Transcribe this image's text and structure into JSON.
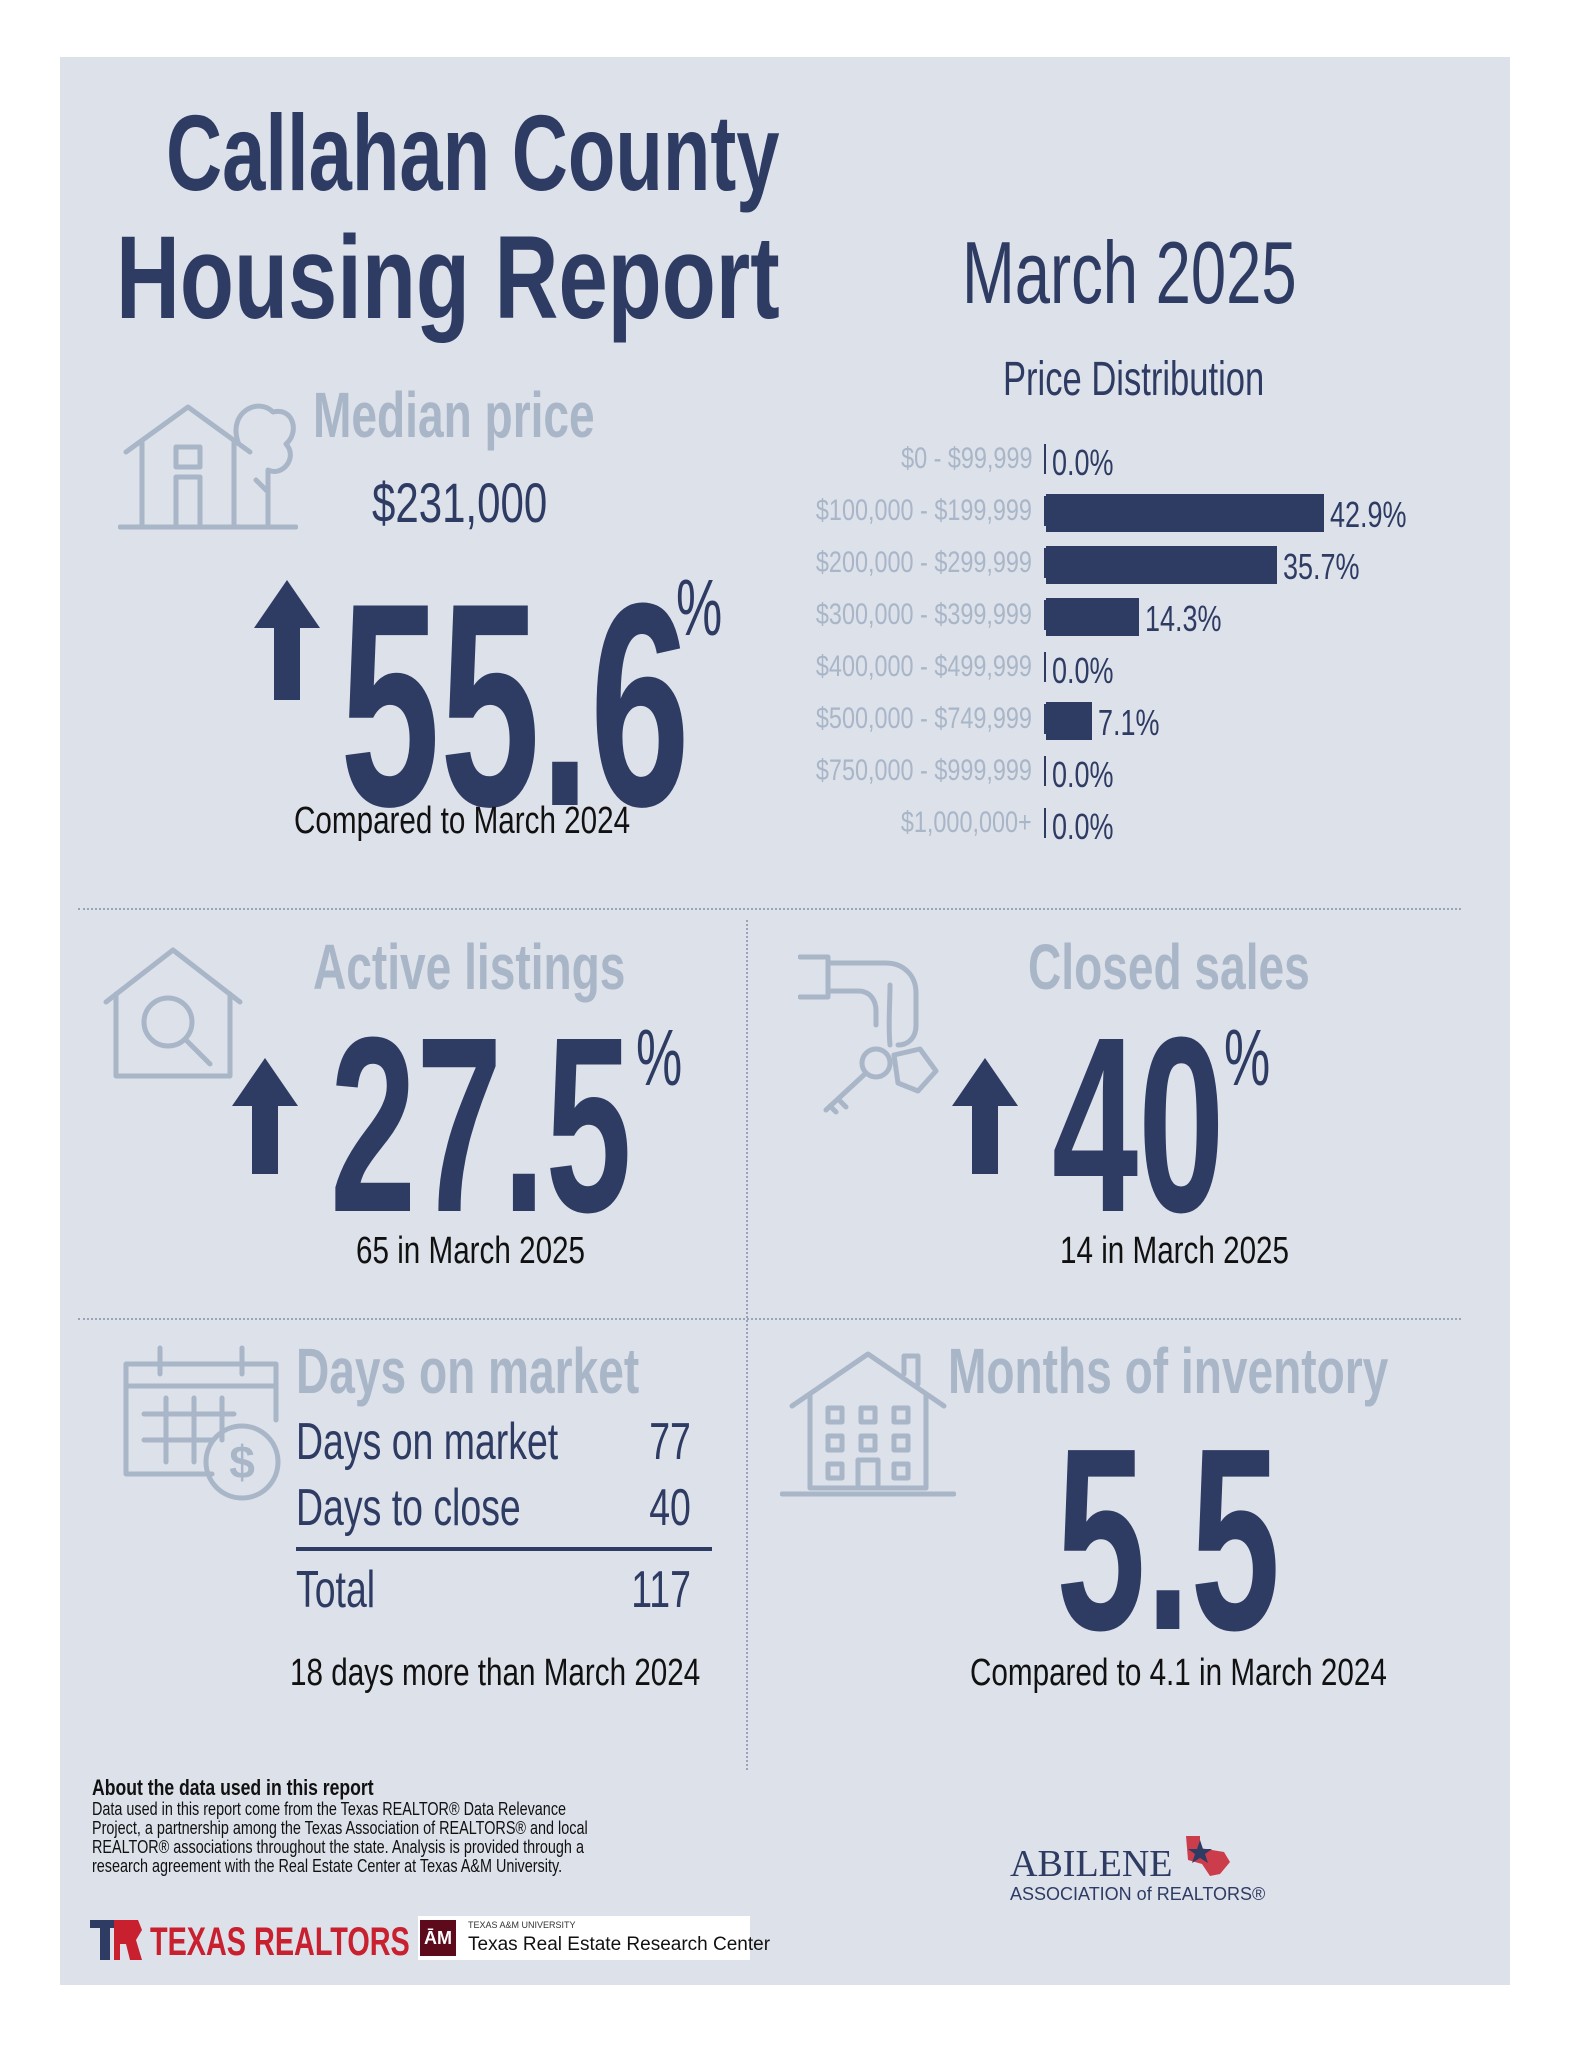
{
  "header": {
    "title_line1": "Callahan County",
    "title_line2": "Housing Report",
    "month": "March 2025"
  },
  "median_price": {
    "label": "Median price",
    "value": "$231,000",
    "change": "55.6",
    "change_unit": "%",
    "direction": "up",
    "caption": "Compared to March 2024"
  },
  "price_distribution": {
    "title": "Price Distribution"
  },
  "chart_data": {
    "type": "bar",
    "orientation": "horizontal",
    "title": "Price Distribution",
    "categories": [
      "$0 - $99,999",
      "$100,000 - $199,999",
      "$200,000 - $299,999",
      "$300,000 - $399,999",
      "$400,000 - $499,999",
      "$500,000 - $749,999",
      "$750,000 - $999,999",
      "$1,000,000+"
    ],
    "values": [
      0.0,
      42.9,
      35.7,
      14.3,
      0.0,
      7.1,
      0.0,
      0.0
    ],
    "value_labels": [
      "0.0%",
      "42.9%",
      "35.7%",
      "14.3%",
      "0.0%",
      "7.1%",
      "0.0%",
      "0.0%"
    ],
    "xlim": [
      0,
      42.9
    ],
    "bar_color": "#2e3c64",
    "grid": false
  },
  "active_listings": {
    "label": "Active listings",
    "change": "27.5",
    "change_unit": "%",
    "direction": "up",
    "caption": "65 in March 2025"
  },
  "closed_sales": {
    "label": "Closed sales",
    "change": "40",
    "change_unit": "%",
    "direction": "up",
    "caption": "14 in March 2025"
  },
  "days_on_market": {
    "label": "Days on market",
    "rows": [
      {
        "key": "Days on market",
        "value": "77"
      },
      {
        "key": "Days to close",
        "value": "40"
      }
    ],
    "total_key": "Total",
    "total_value": "117",
    "caption": "18 days more than March 2024"
  },
  "months_inventory": {
    "label": "Months of inventory",
    "value": "5.5",
    "caption": "Compared to 4.1 in March 2024"
  },
  "footer": {
    "about_title": "About the data used in this report",
    "about_text": "Data used in this report come from the Texas REALTOR® Data Relevance Project, a partnership among the Texas Association of REALTORS® and local REALTOR® associations throughout the state. Analysis is provided through a research agreement with the Real Estate Center at Texas A&M University.",
    "texas_realtors": "TEXAS REALTORS",
    "tamu_small": "TEXAS A&M UNIVERSITY",
    "tamu_name": "Texas Real Estate Research Center",
    "abilene_name": "ABILENE",
    "abilene_sub": "ASSOCIATION of REALTORS®"
  },
  "colors": {
    "navy": "#2e3c64",
    "grey_blue": "#a8b6c8",
    "panel": "#dde1ea",
    "tx_red": "#c8202f"
  }
}
